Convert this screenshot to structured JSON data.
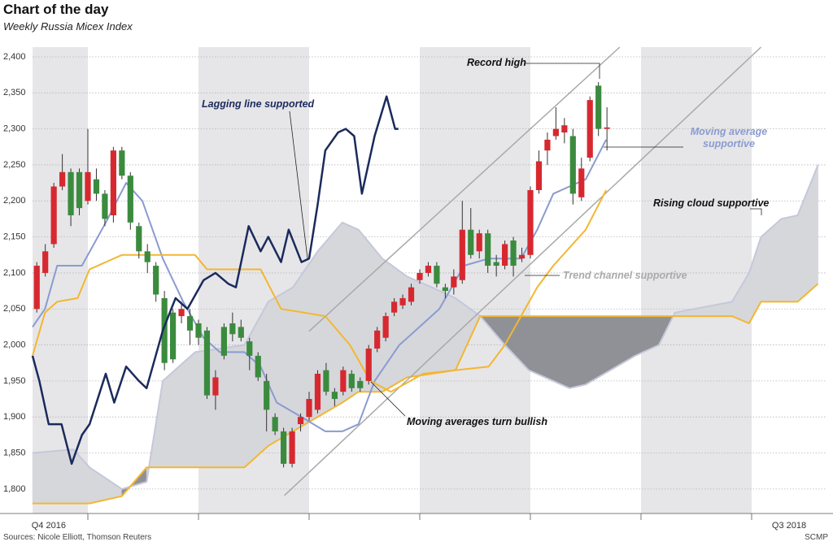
{
  "chart_data": {
    "type": "candlestick",
    "title": "Chart of the day",
    "subtitle": "Weekly Russia Micex Index",
    "source": "Sources: Nicole Elliott, Thomson Reuters",
    "credit": "SCMP",
    "xlim": [
      -0.5,
      92.7
    ],
    "ylim": [
      1766,
      2413.5
    ],
    "yticks": [
      {
        "value": 1800,
        "label": "1,800"
      },
      {
        "value": 1850,
        "label": "1,850"
      },
      {
        "value": 1900,
        "label": "1,900"
      },
      {
        "value": 1950,
        "label": "1,950"
      },
      {
        "value": 2000,
        "label": "2,000"
      },
      {
        "value": 2050,
        "label": "2,050"
      },
      {
        "value": 2100,
        "label": "2,100"
      },
      {
        "value": 2150,
        "label": "2,150"
      },
      {
        "value": 2200,
        "label": "2,200"
      },
      {
        "value": 2250,
        "label": "2,250"
      },
      {
        "value": 2300,
        "label": "2,300"
      },
      {
        "value": 2350,
        "label": "2,350"
      },
      {
        "value": 2400,
        "label": "2,400"
      }
    ],
    "xticks": [
      {
        "value": 1.4,
        "label": "Q4 2016"
      },
      {
        "value": 88.4,
        "label": "Q3 2018"
      }
    ],
    "quarter_boundaries": [
      6,
      19,
      32,
      45,
      58,
      71,
      84
    ],
    "shaded_periods": [
      [
        -0.5,
        6
      ],
      [
        19,
        32
      ],
      [
        45,
        58
      ],
      [
        71,
        84
      ]
    ],
    "grid": true,
    "up_color": "#d7282f",
    "down_color": "#3b8b3e",
    "candles": {
      "x": [
        0,
        1,
        2,
        3,
        4,
        5,
        6,
        7,
        8,
        9,
        10,
        11,
        12,
        13,
        14,
        15,
        16,
        17,
        18,
        19,
        20,
        21,
        22,
        23,
        24,
        25,
        26,
        27,
        28,
        29,
        30,
        31,
        32,
        33,
        34,
        35,
        36,
        37,
        38,
        39,
        40,
        41,
        42,
        43,
        44,
        45,
        46,
        47,
        48,
        49,
        50,
        51,
        52,
        53,
        54,
        55,
        56,
        57,
        58,
        59,
        60,
        61,
        62,
        63,
        64,
        65,
        66,
        67
      ],
      "open": [
        2050,
        2100,
        2140,
        2220,
        2240,
        2240,
        2200,
        2230,
        2210,
        2180,
        2270,
        2235,
        2165,
        2130,
        2110,
        2065,
        2045,
        2040,
        2040,
        2030,
        2020,
        1930,
        2025,
        2030,
        2025,
        2005,
        1985,
        1950,
        1900,
        1880,
        1835,
        1890,
        1900,
        1910,
        1965,
        1935,
        1935,
        1960,
        1950,
        1950,
        1995,
        2010,
        2045,
        2055,
        2060,
        2090,
        2100,
        2110,
        2080,
        2080,
        2090,
        2160,
        2130,
        2155,
        2115,
        2110,
        2145,
        2120,
        2125,
        2215,
        2270,
        2290,
        2295,
        2290,
        2205,
        2260,
        2360,
        2300
      ],
      "high": [
        2115,
        2140,
        2225,
        2265,
        2245,
        2245,
        2300,
        2245,
        2215,
        2275,
        2275,
        2240,
        2170,
        2140,
        2115,
        2075,
        2050,
        2060,
        2050,
        2035,
        2025,
        1965,
        2030,
        2045,
        2035,
        2010,
        1990,
        1960,
        1905,
        1885,
        1885,
        1905,
        1935,
        1965,
        1975,
        1940,
        1970,
        1965,
        1955,
        2000,
        2025,
        2045,
        2065,
        2070,
        2085,
        2105,
        2115,
        2115,
        2085,
        2105,
        2200,
        2190,
        2160,
        2160,
        2125,
        2145,
        2150,
        2135,
        2220,
        2270,
        2295,
        2330,
        2315,
        2300,
        2260,
        2345,
        2365,
        2330
      ],
      "low": [
        2045,
        2095,
        2135,
        2215,
        2165,
        2180,
        2195,
        2200,
        2165,
        2170,
        2230,
        2160,
        2120,
        2100,
        2060,
        1965,
        1975,
        2030,
        2000,
        2000,
        1925,
        1910,
        1980,
        2005,
        2005,
        1965,
        1950,
        1880,
        1875,
        1830,
        1830,
        1880,
        1895,
        1905,
        1930,
        1915,
        1930,
        1935,
        1935,
        1945,
        1990,
        2005,
        2040,
        2050,
        2055,
        2085,
        2095,
        2080,
        2065,
        2070,
        2085,
        2120,
        2120,
        2100,
        2095,
        2105,
        2095,
        2115,
        2120,
        2210,
        2250,
        2285,
        2280,
        2195,
        2200,
        2255,
        2290,
        2270
      ],
      "close": [
        2110,
        2130,
        2220,
        2240,
        2180,
        2190,
        2240,
        2210,
        2175,
        2270,
        2235,
        2170,
        2130,
        2115,
        2070,
        1975,
        1980,
        2050,
        2020,
        2010,
        1930,
        1955,
        1985,
        2015,
        2010,
        1985,
        1955,
        1910,
        1880,
        1835,
        1880,
        1900,
        1925,
        1960,
        1935,
        1925,
        1965,
        1940,
        1940,
        1995,
        2020,
        2040,
        2060,
        2065,
        2080,
        2100,
        2110,
        2085,
        2075,
        2095,
        2160,
        2125,
        2155,
        2110,
        2110,
        2140,
        2110,
        2125,
        2215,
        2255,
        2285,
        2300,
        2305,
        2210,
        2245,
        2340,
        2300,
        2302
      ]
    },
    "cloud": {
      "x": [
        -0.5,
        4.3,
        6.2,
        10,
        12.9,
        14.8,
        18.6,
        24.4,
        27.2,
        30.1,
        33,
        35.9,
        37.8,
        40.6,
        43.5,
        46.4,
        49.2,
        52.1,
        55,
        57.8,
        60.7,
        62.6,
        64.5,
        67.4,
        70.3,
        73.1,
        75,
        81.7,
        83.7,
        85.1,
        87.5,
        89.4,
        91.8
      ],
      "span_a": [
        1850,
        1855,
        1830,
        1800,
        1810,
        1950,
        1990,
        2000,
        2060,
        2080,
        2130,
        2170,
        2160,
        2120,
        2095,
        2080,
        2065,
        2040,
        2000,
        1965,
        1950,
        1940,
        1945,
        1965,
        1985,
        2000,
        2045,
        2060,
        2100,
        2150,
        2175,
        2180,
        2250
      ],
      "span_b": [
        1780,
        1780,
        1780,
        1790,
        1830,
        1830,
        1830,
        1830,
        1860,
        1880,
        1900,
        1920,
        1935,
        1935,
        1955,
        1960,
        1965,
        2040,
        2040,
        2040,
        2040,
        2040,
        2040,
        2040,
        2040,
        2040,
        2040,
        2040,
        2030,
        2060,
        2060,
        2060,
        2085
      ],
      "span_a_color": "#c5c8da",
      "span_b_color": "#f2b731",
      "fill_color": "#d6d7db",
      "fill_color_inverted": "#909197"
    },
    "lines": [
      {
        "color": "#8a9bd0",
        "x": [
          -0.5,
          0.96,
          2.4,
          5.3,
          8.1,
          10.5,
          12.4,
          14.8,
          17.2,
          19.6,
          21.5,
          24.4,
          26.3,
          28.2,
          31.1,
          33.9,
          35.9,
          37.8,
          39.7,
          42.6,
          44.5,
          47.3,
          50.2,
          53.1,
          56.9,
          58.8,
          60.7,
          62.6,
          64.5,
          66.9
        ],
        "values": [
          2025,
          2050,
          2110,
          2110,
          2170,
          2225,
          2200,
          2120,
          2060,
          2010,
          1990,
          1990,
          1970,
          1920,
          1900,
          1880,
          1880,
          1890,
          1950,
          2000,
          2020,
          2050,
          2110,
          2120,
          2120,
          2160,
          2210,
          2220,
          2230,
          2285
        ]
      },
      {
        "color": "#f2b731",
        "x": [
          -0.5,
          0.96,
          2.4,
          4.8,
          6.2,
          10,
          18.6,
          20,
          26.3,
          28.7,
          33.9,
          36.8,
          39.2,
          41.6,
          45.4,
          49.2,
          53.1,
          55,
          56.9,
          58.8,
          60.7,
          64.5,
          66.9
        ],
        "values": [
          1985,
          2045,
          2060,
          2065,
          2105,
          2125,
          2125,
          2105,
          2105,
          2050,
          2040,
          2000,
          1950,
          1935,
          1960,
          1965,
          1970,
          2000,
          2040,
          2080,
          2110,
          2160,
          2215
        ]
      },
      {
        "color": "#1b2a5c",
        "x": [
          -0.5,
          0.3,
          1.4,
          2.9,
          4.1,
          5.3,
          6.2,
          8.1,
          9.1,
          10.5,
          12,
          12.9,
          14.8,
          16.3,
          17.7,
          19.6,
          21,
          22.5,
          23.4,
          24.9,
          26.3,
          27.2,
          28.7,
          29.6,
          31.1,
          32,
          33,
          33.9,
          35.4,
          36.3,
          37.3,
          38.2,
          39.7,
          41.1,
          42.1,
          42.5
        ],
        "values": [
          1985,
          1950,
          1890,
          1890,
          1835,
          1875,
          1890,
          1960,
          1920,
          1970,
          1950,
          1940,
          2020,
          2065,
          2050,
          2090,
          2100,
          2085,
          2080,
          2165,
          2130,
          2150,
          2115,
          2160,
          2115,
          2120,
          2195,
          2270,
          2295,
          2300,
          2290,
          2210,
          2290,
          2345,
          2300,
          2300
        ]
      }
    ],
    "trend_channel": {
      "color": "#a9a9a9",
      "lines": [
        [
          [
            29.1,
            1791
          ],
          [
            85.1,
            2413.5
          ]
        ],
        [
          [
            32,
            2019
          ],
          [
            68.5,
            2413.5
          ]
        ]
      ]
    },
    "annotations": [
      "Record high",
      "Lagging line supported",
      "Moving average supportive",
      "Rising cloud supportive",
      "Trend channel supportive",
      "Moving averages turn bullish"
    ]
  }
}
